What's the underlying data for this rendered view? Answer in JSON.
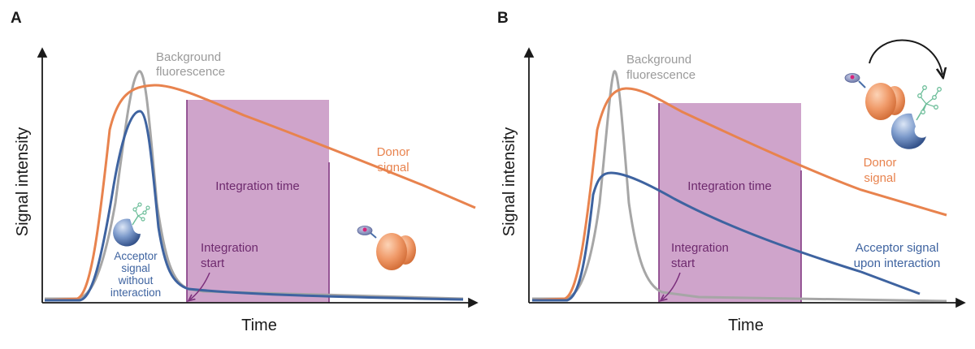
{
  "panels": [
    {
      "letter": "A",
      "xlabel": "Time",
      "ylabel": "Signal intensity",
      "labels": {
        "background_line1": "Background",
        "background_line2": "fluorescence",
        "donor_line1": "Donor",
        "donor_line2": "signal",
        "integration_time": "Integration time",
        "start_line1": "Integration",
        "start_line2": "start",
        "acceptor_lines": [
          "Acceptor",
          "signal",
          "without",
          "interaction"
        ]
      }
    },
    {
      "letter": "B",
      "xlabel": "Time",
      "ylabel": "Signal intensity",
      "labels": {
        "background_line1": "Background",
        "background_line2": "fluorescence",
        "donor_line1": "Donor",
        "donor_line2": "signal",
        "integration_time": "Integration time",
        "start_line1": "Integration",
        "start_line2": "start",
        "acceptor_lines": [
          "Acceptor signal",
          "upon interaction"
        ]
      }
    }
  ],
  "colors": {
    "donor": "#E8834E",
    "background": "#A6A6A6",
    "acceptor": "#3E63A0",
    "integration_fill": "#CFA4CB",
    "integration_edge": "#7B2F7C",
    "integration_text": "#6E2A6E",
    "axis": "#1a1a1a"
  },
  "icons": [
    "donor-protein-icon",
    "acceptor-molecule-icon",
    "interaction-arrow-icon"
  ]
}
